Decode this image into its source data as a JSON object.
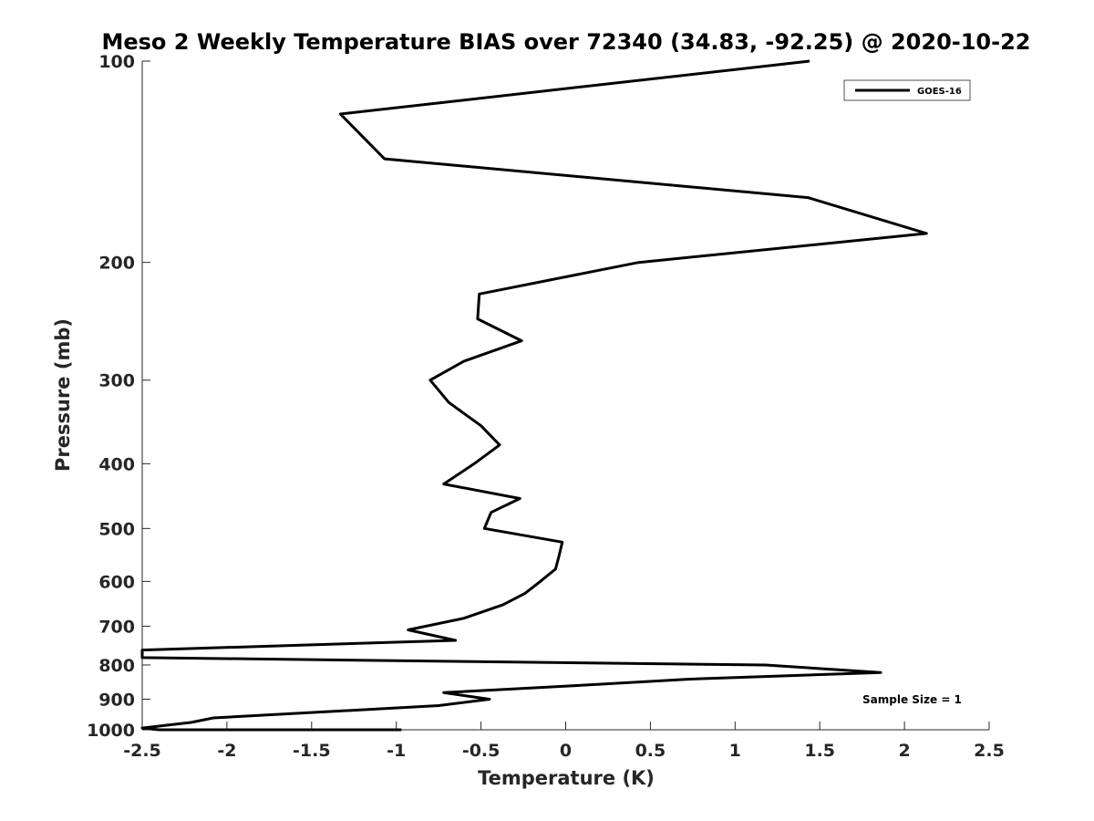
{
  "chart_data": {
    "type": "line",
    "title": "Meso 2 Weekly Temperature BIAS over 72340 (34.83, -92.25) @ 2020-10-22",
    "xlabel": "Temperature (K)",
    "ylabel": "Pressure (mb)",
    "xlim": [
      -2.5,
      2.5
    ],
    "ylim": [
      100,
      1000
    ],
    "y_scale": "log",
    "y_reversed": true,
    "grid": false,
    "legend_position": "top-right",
    "x_ticks": [
      -2.5,
      -2,
      -1.5,
      -1,
      -0.5,
      0,
      0.5,
      1,
      1.5,
      2,
      2.5
    ],
    "x_tick_labels": [
      "-2.5",
      "-2",
      "-1.5",
      "-1",
      "-0.5",
      "0",
      "0.5",
      "1",
      "1.5",
      "2",
      "2.5"
    ],
    "y_ticks": [
      100,
      200,
      300,
      400,
      500,
      600,
      700,
      800,
      900,
      1000
    ],
    "y_tick_labels": [
      "100",
      "200",
      "300",
      "400",
      "500",
      "600",
      "700",
      "800",
      "900",
      "1000"
    ],
    "series": [
      {
        "name": "GOES-16",
        "color": "#000000",
        "points": [
          [
            1.44,
            100
          ],
          [
            -1.33,
            120
          ],
          [
            -1.07,
            140
          ],
          [
            1.43,
            160
          ],
          [
            2.13,
            181
          ],
          [
            0.43,
            200
          ],
          [
            -0.51,
            223
          ],
          [
            -0.52,
            243
          ],
          [
            -0.26,
            262
          ],
          [
            -0.6,
            281
          ],
          [
            -0.8,
            300
          ],
          [
            -0.69,
            324
          ],
          [
            -0.5,
            351
          ],
          [
            -0.39,
            375
          ],
          [
            -0.54,
            400
          ],
          [
            -0.72,
            429
          ],
          [
            -0.27,
            451
          ],
          [
            -0.44,
            473
          ],
          [
            -0.48,
            500
          ],
          [
            -0.02,
            524
          ],
          [
            -0.04,
            550
          ],
          [
            -0.06,
            575
          ],
          [
            -0.15,
            600
          ],
          [
            -0.24,
            625
          ],
          [
            -0.37,
            650
          ],
          [
            -0.6,
            681
          ],
          [
            -0.93,
            709
          ],
          [
            -0.65,
            735
          ],
          [
            -2.5,
            760
          ],
          [
            -2.5,
            780
          ],
          [
            1.18,
            800
          ],
          [
            1.86,
            821
          ],
          [
            0.73,
            840
          ],
          [
            -0.02,
            861
          ],
          [
            -0.72,
            880
          ],
          [
            -0.45,
            900
          ],
          [
            -0.75,
            920
          ],
          [
            -2.08,
            960
          ],
          [
            -2.21,
            975
          ],
          [
            -2.5,
            994
          ],
          [
            -2.4,
            1000
          ],
          [
            -1.12,
            1010
          ],
          [
            -0.97,
            1020
          ]
        ]
      }
    ],
    "annotation": "Sample Size = 1"
  }
}
